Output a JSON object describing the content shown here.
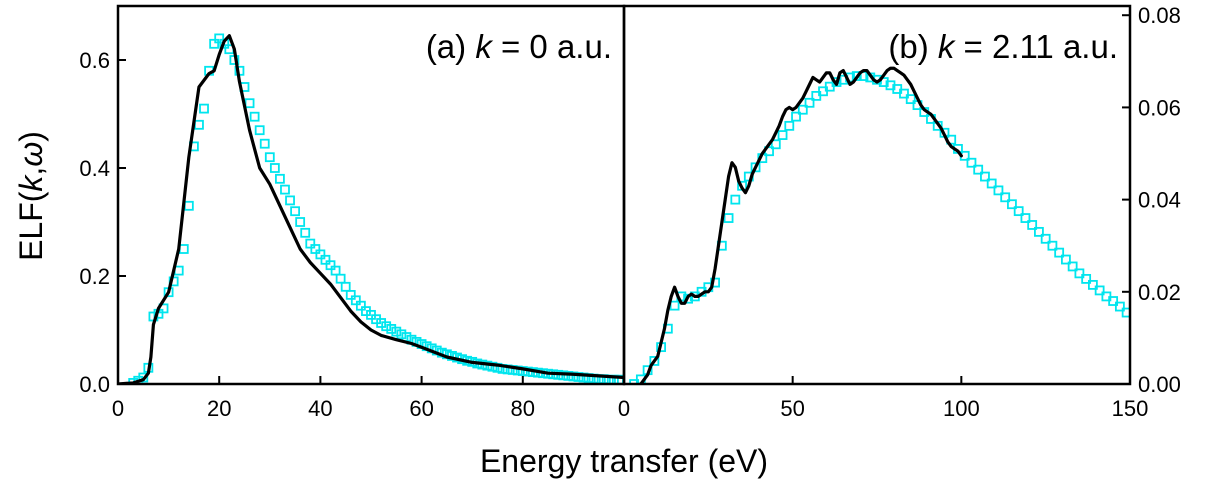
{
  "figure": {
    "xlabel": "Energy transfer (eV)",
    "ylabel_prefix": "ELF(",
    "ylabel_k": "k",
    "ylabel_sep": ",",
    "ylabel_omega": "ω",
    "ylabel_suffix": ")"
  },
  "colors": {
    "simulation": "#000000",
    "reference": "#00e5ee"
  },
  "chart_data": [
    {
      "type": "line",
      "panel": "a",
      "label_prefix": "(a) ",
      "label_var": "k",
      "label_suffix": " = 0 a.u.",
      "xlim": [
        0,
        100
      ],
      "ylim": [
        0,
        0.7
      ],
      "y_axis_side": "left",
      "xticks": [
        0,
        20,
        40,
        60,
        80
      ],
      "yticks": [
        0.0,
        0.2,
        0.4,
        0.6
      ],
      "xtick_labels": [
        "0",
        "20",
        "40",
        "60",
        "80"
      ],
      "ytick_labels": [
        "0.0",
        "0.2",
        "0.4",
        "0.6"
      ],
      "series": [
        {
          "style": "line",
          "color": "#000000",
          "x": [
            0,
            3,
            5,
            6,
            6.5,
            7,
            8,
            10,
            12,
            14,
            16,
            18,
            19,
            20,
            21,
            22,
            23,
            24,
            26,
            28,
            30,
            32,
            34,
            36,
            38,
            40,
            42,
            44,
            46,
            48,
            50,
            52,
            55,
            58,
            60,
            65,
            70,
            75,
            80,
            85,
            90,
            95,
            100
          ],
          "y": [
            0.0,
            0.002,
            0.008,
            0.02,
            0.05,
            0.11,
            0.14,
            0.17,
            0.25,
            0.42,
            0.55,
            0.575,
            0.58,
            0.61,
            0.635,
            0.645,
            0.62,
            0.56,
            0.47,
            0.4,
            0.37,
            0.33,
            0.29,
            0.25,
            0.225,
            0.205,
            0.185,
            0.16,
            0.135,
            0.115,
            0.1,
            0.09,
            0.082,
            0.075,
            0.068,
            0.05,
            0.04,
            0.035,
            0.028,
            0.02,
            0.018,
            0.015,
            0.012
          ]
        },
        {
          "style": "markers",
          "color": "#00e5ee",
          "x": [
            3,
            4,
            5,
            6,
            7,
            8,
            9,
            10,
            11,
            12,
            13,
            14,
            15,
            16,
            17,
            18,
            19,
            20,
            21,
            22,
            23,
            24,
            25,
            26,
            27,
            28,
            29,
            30,
            31,
            32,
            33,
            34,
            35,
            36,
            37,
            38,
            39,
            40,
            41,
            42,
            43,
            44,
            45,
            46,
            47,
            48,
            49,
            50,
            51,
            52,
            53,
            54,
            55,
            56,
            57,
            58,
            59,
            60,
            61,
            62,
            63,
            64,
            65,
            66,
            67,
            68,
            69,
            70,
            71,
            72,
            73,
            74,
            75,
            76,
            77,
            78,
            79,
            80,
            81,
            82,
            83,
            84,
            85,
            86,
            87,
            88,
            89,
            90,
            91,
            92,
            93,
            94,
            95,
            96,
            97,
            98,
            99
          ],
          "y": [
            0.002,
            0.006,
            0.012,
            0.03,
            0.125,
            0.13,
            0.14,
            0.17,
            0.19,
            0.21,
            0.25,
            0.33,
            0.44,
            0.48,
            0.51,
            0.58,
            0.63,
            0.64,
            0.63,
            0.62,
            0.6,
            0.58,
            0.55,
            0.52,
            0.495,
            0.47,
            0.445,
            0.42,
            0.4,
            0.38,
            0.36,
            0.34,
            0.32,
            0.3,
            0.28,
            0.26,
            0.25,
            0.24,
            0.23,
            0.22,
            0.21,
            0.195,
            0.18,
            0.165,
            0.155,
            0.145,
            0.135,
            0.128,
            0.12,
            0.113,
            0.107,
            0.102,
            0.097,
            0.092,
            0.087,
            0.082,
            0.078,
            0.074,
            0.07,
            0.066,
            0.062,
            0.058,
            0.055,
            0.052,
            0.049,
            0.046,
            0.043,
            0.041,
            0.038,
            0.036,
            0.034,
            0.032,
            0.03,
            0.028,
            0.027,
            0.026,
            0.025,
            0.024,
            0.023,
            0.022,
            0.021,
            0.02,
            0.019,
            0.018,
            0.017,
            0.016,
            0.015,
            0.014,
            0.013,
            0.012,
            0.011,
            0.01,
            0.009,
            0.009,
            0.008,
            0.008,
            0.008
          ]
        }
      ]
    },
    {
      "type": "line",
      "panel": "b",
      "label_prefix": "(b) ",
      "label_var": "k",
      "label_suffix": " = 2.11 a.u.",
      "xlim": [
        0,
        150
      ],
      "ylim": [
        0,
        0.082
      ],
      "y_axis_side": "right",
      "xticks": [
        0,
        50,
        100,
        150
      ],
      "yticks": [
        0.0,
        0.02,
        0.04,
        0.06,
        0.08
      ],
      "xtick_labels": [
        "0",
        "50",
        "100",
        "150"
      ],
      "ytick_labels": [
        "0.00",
        "0.02",
        "0.04",
        "0.06",
        "0.08"
      ],
      "series": [
        {
          "style": "line",
          "color": "#000000",
          "x": [
            5,
            7,
            8,
            9,
            10,
            11,
            12,
            13,
            14,
            15,
            16,
            17,
            18,
            19,
            20,
            21,
            22,
            23,
            24,
            25,
            26,
            27,
            28,
            29,
            30,
            31,
            32,
            33,
            34,
            35,
            36,
            37,
            38,
            39,
            40,
            41,
            42,
            43,
            44,
            45,
            46,
            47,
            48,
            49,
            50,
            51,
            52,
            53,
            54,
            55,
            56,
            57,
            58,
            59,
            60,
            61,
            62,
            63,
            64,
            65,
            66,
            67,
            68,
            69,
            70,
            71,
            72,
            73,
            74,
            75,
            76,
            77,
            78,
            79,
            80,
            81,
            82,
            83,
            84,
            85,
            86,
            87,
            88,
            89,
            90,
            91,
            92,
            93,
            94,
            95,
            96,
            97,
            98,
            99,
            100
          ],
          "y": [
            0.0,
            0.002,
            0.004,
            0.005,
            0.006,
            0.009,
            0.012,
            0.016,
            0.019,
            0.021,
            0.019,
            0.0175,
            0.0175,
            0.019,
            0.0195,
            0.019,
            0.019,
            0.0195,
            0.02,
            0.02,
            0.021,
            0.025,
            0.03,
            0.035,
            0.04,
            0.045,
            0.048,
            0.047,
            0.044,
            0.0425,
            0.0415,
            0.043,
            0.0455,
            0.047,
            0.0485,
            0.05,
            0.051,
            0.052,
            0.053,
            0.0545,
            0.056,
            0.058,
            0.0595,
            0.06,
            0.0595,
            0.06,
            0.061,
            0.062,
            0.0635,
            0.065,
            0.0665,
            0.066,
            0.0655,
            0.0665,
            0.0675,
            0.0675,
            0.066,
            0.065,
            0.0675,
            0.068,
            0.0665,
            0.065,
            0.0655,
            0.0665,
            0.0675,
            0.068,
            0.068,
            0.067,
            0.066,
            0.0655,
            0.066,
            0.067,
            0.068,
            0.0685,
            0.0685,
            0.068,
            0.0675,
            0.067,
            0.066,
            0.065,
            0.0635,
            0.062,
            0.0605,
            0.0595,
            0.059,
            0.0585,
            0.0575,
            0.0565,
            0.0555,
            0.054,
            0.0525,
            0.0515,
            0.051,
            0.0505,
            0.0495
          ]
        },
        {
          "style": "markers",
          "color": "#00e5ee",
          "x": [
            3,
            5,
            7,
            9,
            11,
            13,
            15,
            17,
            19,
            21,
            23,
            25,
            27,
            29,
            31,
            33,
            35,
            37,
            39,
            41,
            43,
            45,
            47,
            49,
            51,
            53,
            55,
            57,
            59,
            61,
            63,
            65,
            67,
            69,
            71,
            73,
            75,
            77,
            79,
            81,
            83,
            85,
            87,
            89,
            91,
            93,
            95,
            97,
            99,
            101,
            103,
            105,
            107,
            109,
            111,
            113,
            115,
            117,
            119,
            121,
            123,
            125,
            127,
            129,
            131,
            133,
            135,
            137,
            139,
            141,
            143,
            145,
            147,
            149
          ],
          "y": [
            0.0,
            0.001,
            0.003,
            0.005,
            0.008,
            0.012,
            0.017,
            0.019,
            0.0185,
            0.019,
            0.02,
            0.021,
            0.022,
            0.03,
            0.036,
            0.04,
            0.043,
            0.045,
            0.047,
            0.049,
            0.0505,
            0.052,
            0.054,
            0.056,
            0.058,
            0.0595,
            0.061,
            0.0625,
            0.0635,
            0.0645,
            0.0655,
            0.066,
            0.0665,
            0.0668,
            0.0668,
            0.0665,
            0.066,
            0.0655,
            0.0648,
            0.064,
            0.063,
            0.0618,
            0.0605,
            0.059,
            0.0575,
            0.056,
            0.0545,
            0.053,
            0.051,
            0.0495,
            0.048,
            0.0465,
            0.045,
            0.0435,
            0.042,
            0.0405,
            0.039,
            0.0375,
            0.036,
            0.0345,
            0.033,
            0.0315,
            0.03,
            0.0285,
            0.027,
            0.0255,
            0.024,
            0.0228,
            0.0215,
            0.0203,
            0.019,
            0.018,
            0.0168,
            0.0155
          ]
        }
      ]
    }
  ]
}
